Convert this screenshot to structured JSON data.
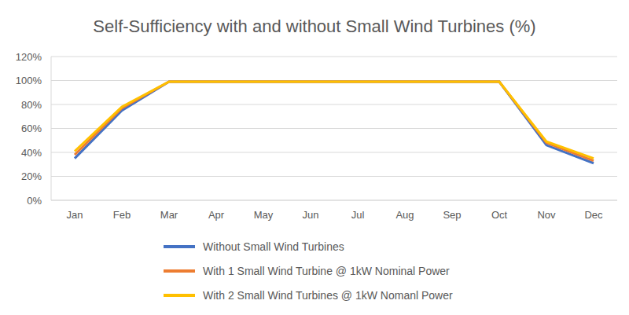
{
  "chart_data": {
    "type": "line",
    "title": "Self-Sufficiency with and without Small Wind Turbines (%)",
    "categories": [
      "Jan",
      "Feb",
      "Mar",
      "Apr",
      "May",
      "Jun",
      "Jul",
      "Aug",
      "Sep",
      "Oct",
      "Nov",
      "Dec"
    ],
    "series": [
      {
        "name": "Without Small Wind Turbines",
        "color": "#4472c4",
        "values": [
          35,
          75,
          99,
          99,
          99,
          99,
          99,
          99,
          99,
          99,
          46,
          31
        ]
      },
      {
        "name": "With 1 Small Wind Turbine @ 1kW Nominal Power",
        "color": "#ed7d31",
        "values": [
          38,
          77,
          99,
          99,
          99,
          99,
          99,
          99,
          99,
          99,
          48,
          33
        ]
      },
      {
        "name": "With 2 Small Wind Turbines @ 1kW Nomanl Power",
        "color": "#ffc000",
        "values": [
          41,
          78,
          99,
          99,
          99,
          99,
          99,
          99,
          99,
          99,
          49,
          35
        ]
      }
    ],
    "ylim": [
      0,
      120
    ],
    "yticks": [
      {
        "value": 0,
        "label": "0%"
      },
      {
        "value": 20,
        "label": "20%"
      },
      {
        "value": 40,
        "label": "40%"
      },
      {
        "value": 60,
        "label": "60%"
      },
      {
        "value": 80,
        "label": "80%"
      },
      {
        "value": 100,
        "label": "100%"
      },
      {
        "value": 120,
        "label": "120%"
      }
    ],
    "grid": true,
    "legend": "bottom"
  }
}
